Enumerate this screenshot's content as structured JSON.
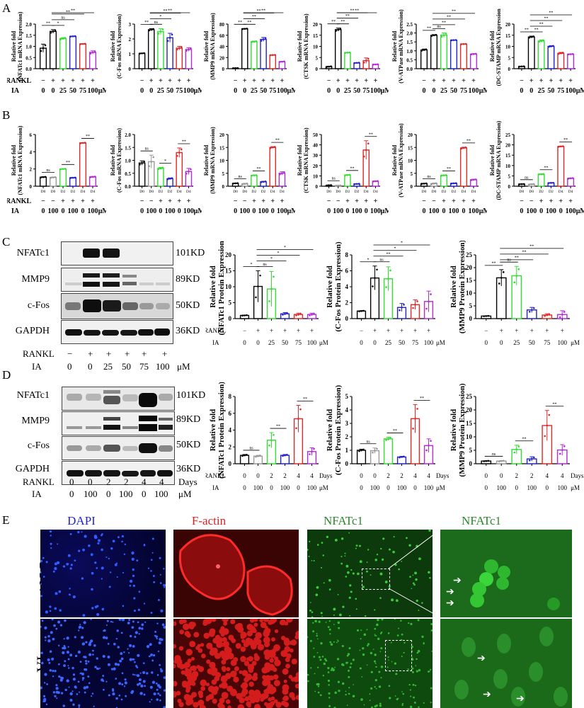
{
  "panels": {
    "A": "A",
    "B": "B",
    "C": "C",
    "D": "D",
    "E": "E"
  },
  "colors": {
    "black": "#000000",
    "gray": "#9a9a9a",
    "green": "#33dd33",
    "blue": "#2222cc",
    "red": "#e02828",
    "purple": "#b32ad8"
  },
  "conditions_dose": {
    "rankl_label": "RANKL",
    "ia_label": "IA",
    "rankl": [
      "−",
      "+",
      "+",
      "+",
      "+",
      "+"
    ],
    "ia": [
      "0",
      "0",
      "25",
      "50",
      "75",
      "100"
    ],
    "unit": "μM"
  },
  "conditions_time": {
    "rankl_label": "RANKL",
    "ia_label": "IA",
    "rankl": [
      "−",
      "−",
      "+",
      "+",
      "+",
      "+"
    ],
    "ia": [
      "0",
      "100",
      "0",
      "100",
      "0",
      "100"
    ],
    "unit": "μM",
    "days": [
      "D0",
      "D0",
      "D2",
      "D2",
      "D4",
      "D4"
    ]
  },
  "conditions_time_protein": {
    "rankl_label": "RANKL",
    "ia_label": "IA",
    "rankl": [
      "0",
      "0",
      "2",
      "2",
      "4",
      "4"
    ],
    "ia": [
      "0",
      "100",
      "0",
      "100",
      "0",
      "100"
    ],
    "rankl_unit": "Days",
    "ia_unit": "μM"
  },
  "blots": {
    "C": {
      "rows": [
        {
          "name": "NFATc1",
          "kd": "101KD"
        },
        {
          "name": "MMP9",
          "kd": "89KD"
        },
        {
          "name": "c-Fos",
          "kd": "50KD"
        },
        {
          "name": "GAPDH",
          "kd": "36KD"
        }
      ],
      "rankl": [
        "−",
        "+",
        "+",
        "+",
        "+",
        "+"
      ],
      "ia": [
        "0",
        "0",
        "25",
        "50",
        "75",
        "100"
      ],
      "unit": "μM",
      "rankl_label": "RANKL",
      "ia_label": "IA"
    },
    "D": {
      "rows": [
        {
          "name": "NFATc1",
          "kd": "101KD"
        },
        {
          "name": "MMP9",
          "kd": "89KD"
        },
        {
          "name": "c-Fos",
          "kd": "50KD"
        },
        {
          "name": "GAPDH",
          "kd": "36KD"
        }
      ],
      "rankl": [
        "0",
        "0",
        "2",
        "2",
        "4",
        "4"
      ],
      "ia": [
        "0",
        "100",
        "0",
        "100",
        "0",
        "100"
      ],
      "rankl_unit": "Days",
      "unit": "μM",
      "rankl_label": "RANKL",
      "ia_label": "IA"
    }
  },
  "microscopy": {
    "titles": [
      "DAPI",
      "F-actin",
      "NFATc1",
      "NFATc1"
    ],
    "rows": [
      "CON",
      "IA"
    ]
  },
  "chart_data": [
    {
      "id": "A1",
      "type": "bar",
      "ylabel": "Relative fold (NFATc1 mRNA Expression)",
      "ylim": [
        0,
        2.0
      ],
      "yticks": [
        "0.0",
        "0.5",
        "1.0",
        "1.5",
        "2.0"
      ],
      "categories": [
        "−/0",
        "+/0",
        "+/25",
        "+/50",
        "+/75",
        "+/100"
      ],
      "values": [
        0.92,
        1.67,
        1.35,
        1.45,
        1.11,
        0.73
      ],
      "errors": [
        0.18,
        0.08,
        0.04,
        0.01,
        0.01,
        0.07
      ],
      "sig": [
        {
          "from": 0,
          "to": 1,
          "label": "**"
        },
        {
          "from": 1,
          "to": 2,
          "label": "*"
        },
        {
          "from": 1,
          "to": 3,
          "label": "ns"
        },
        {
          "from": 1,
          "to": 4,
          "label": "**"
        },
        {
          "from": 1,
          "to": 5,
          "label": "**"
        }
      ]
    },
    {
      "id": "A2",
      "type": "bar",
      "ylabel": "Relative fold (C-Fos mRNA Expression)",
      "ylim": [
        0,
        3
      ],
      "yticks": [
        "0",
        "1",
        "2",
        "3"
      ],
      "categories": [
        "−/0",
        "+/0",
        "+/25",
        "+/50",
        "+/75",
        "+/100"
      ],
      "values": [
        1.03,
        2.62,
        2.5,
        2.08,
        1.38,
        1.29
      ],
      "errors": [
        0.02,
        0.07,
        0.2,
        0.3,
        0.12,
        0.12
      ],
      "sig": [
        {
          "from": 0,
          "to": 1,
          "label": "**"
        },
        {
          "from": 1,
          "to": 2,
          "label": "ns"
        },
        {
          "from": 1,
          "to": 3,
          "label": "*"
        },
        {
          "from": 1,
          "to": 4,
          "label": "**"
        },
        {
          "from": 1,
          "to": 5,
          "label": "**"
        }
      ]
    },
    {
      "id": "A3",
      "type": "bar",
      "ylabel": "Relative fold (MMP9 mRNA Expression)",
      "ylim": [
        0,
        80
      ],
      "yticks": [
        "0",
        "20",
        "40",
        "60",
        "80"
      ],
      "categories": [
        "−/0",
        "+/0",
        "+/25",
        "+/50",
        "+/75",
        "+/100"
      ],
      "values": [
        1,
        71.5,
        48.5,
        52.5,
        24.5,
        12.5
      ],
      "errors": [
        0.2,
        0.5,
        1,
        3.5,
        0.3,
        0.6
      ],
      "sig": [
        {
          "from": 0,
          "to": 1,
          "label": "**"
        },
        {
          "from": 1,
          "to": 2,
          "label": "**"
        },
        {
          "from": 1,
          "to": 3,
          "label": "**"
        },
        {
          "from": 1,
          "to": 4,
          "label": "**"
        },
        {
          "from": 1,
          "to": 5,
          "label": "**"
        }
      ]
    },
    {
      "id": "A4",
      "type": "bar",
      "ylabel": "Relative fold (CTSK mRNA Expression)",
      "ylim": [
        0,
        20
      ],
      "yticks": [
        "0",
        "5",
        "10",
        "15",
        "20"
      ],
      "categories": [
        "−/0",
        "+/0",
        "+/25",
        "+/50",
        "+/75",
        "+/100"
      ],
      "values": [
        0.9,
        17.5,
        7.2,
        2.6,
        3.6,
        1.9
      ],
      "errors": [
        0.2,
        0.7,
        0.1,
        0.1,
        1.2,
        0.1
      ],
      "sig": [
        {
          "from": 0,
          "to": 1,
          "label": "**"
        },
        {
          "from": 1,
          "to": 2,
          "label": "**"
        },
        {
          "from": 1,
          "to": 3,
          "label": "**"
        },
        {
          "from": 1,
          "to": 4,
          "label": "**"
        },
        {
          "from": 1,
          "to": 5,
          "label": "**"
        }
      ]
    },
    {
      "id": "A5",
      "type": "bar",
      "ylabel": "Relative fold (V-ATPase mRNA Expression)",
      "ylim": [
        0,
        2.5
      ],
      "yticks": [
        "0.0",
        "0.5",
        "1.0",
        "1.5",
        "2.0",
        "2.5"
      ],
      "categories": [
        "−/0",
        "+/0",
        "+/25",
        "+/50",
        "+/75",
        "+/100"
      ],
      "values": [
        1.05,
        1.87,
        1.88,
        1.6,
        1.38,
        0.82
      ],
      "errors": [
        0.05,
        0.04,
        0.12,
        0.01,
        0.01,
        0.02
      ],
      "sig": [
        {
          "from": 0,
          "to": 1,
          "label": "**"
        },
        {
          "from": 1,
          "to": 2,
          "label": "ns"
        },
        {
          "from": 1,
          "to": 3,
          "label": "**"
        },
        {
          "from": 1,
          "to": 4,
          "label": "**"
        },
        {
          "from": 1,
          "to": 5,
          "label": "**"
        }
      ]
    },
    {
      "id": "A6",
      "type": "bar",
      "ylabel": "Relative fold (DC-STAMP mRNA Expression)",
      "ylim": [
        0,
        20
      ],
      "yticks": [
        "0",
        "5",
        "10",
        "15",
        "20"
      ],
      "categories": [
        "−/0",
        "+/0",
        "+/25",
        "+/50",
        "+/75",
        "+/100"
      ],
      "values": [
        1,
        14.2,
        12.4,
        10,
        6.9,
        6.5
      ],
      "errors": [
        0.1,
        0.4,
        0.5,
        0.3,
        0.4,
        0.1
      ],
      "sig": [
        {
          "from": 0,
          "to": 1,
          "label": "**"
        },
        {
          "from": 1,
          "to": 2,
          "label": "**"
        },
        {
          "from": 1,
          "to": 3,
          "label": "**"
        },
        {
          "from": 1,
          "to": 4,
          "label": "**"
        },
        {
          "from": 1,
          "to": 5,
          "label": "**"
        }
      ]
    },
    {
      "id": "B1",
      "type": "bar",
      "ylabel": "Relative fold (NFATc1 mRNA Expression)",
      "ylim": [
        0,
        6
      ],
      "yticks": [
        "0",
        "2",
        "4",
        "6"
      ],
      "categories": [
        "D0",
        "D0",
        "D2",
        "D2",
        "D4",
        "D4"
      ],
      "values": [
        1.05,
        1.02,
        2.0,
        0.98,
        5.02,
        1.08
      ],
      "errors": [
        0.05,
        0.05,
        0.03,
        0.03,
        0.04,
        0.05
      ],
      "sig": [
        {
          "from": 0,
          "to": 1,
          "label": "ns"
        },
        {
          "from": 2,
          "to": 3,
          "label": "**"
        },
        {
          "from": 4,
          "to": 5,
          "label": "**"
        }
      ]
    },
    {
      "id": "B2",
      "type": "bar",
      "ylabel": "Relative fold (C-Fos mRNA Expression)",
      "ylim": [
        0,
        2.0
      ],
      "yticks": [
        "0.0",
        "0.5",
        "1.0",
        "1.5",
        "2.0"
      ],
      "categories": [
        "D0",
        "D0",
        "D2",
        "D2",
        "D4",
        "D4"
      ],
      "values": [
        0.9,
        0.95,
        0.69,
        0.29,
        1.3,
        0.57
      ],
      "errors": [
        0.08,
        0.25,
        0.04,
        0.03,
        0.18,
        0.12
      ],
      "sig": [
        {
          "from": 0,
          "to": 1,
          "label": "ns"
        },
        {
          "from": 2,
          "to": 3,
          "label": "*"
        },
        {
          "from": 4,
          "to": 5,
          "label": "**"
        }
      ]
    },
    {
      "id": "B3",
      "type": "bar",
      "ylabel": "Relative fold (MMP9 mRNA Expression)",
      "ylim": [
        0,
        20
      ],
      "yticks": [
        "0",
        "5",
        "10",
        "15",
        "20"
      ],
      "categories": [
        "D0",
        "D0",
        "D2",
        "D2",
        "D4",
        "D4"
      ],
      "values": [
        1.1,
        0.9,
        4.2,
        1.7,
        15.0,
        5.0
      ],
      "errors": [
        0.1,
        0.2,
        0.1,
        0.2,
        0.3,
        0.6
      ],
      "sig": [
        {
          "from": 0,
          "to": 1,
          "label": "ns"
        },
        {
          "from": 2,
          "to": 3,
          "label": "**"
        },
        {
          "from": 4,
          "to": 5,
          "label": "**"
        }
      ]
    },
    {
      "id": "B4",
      "type": "bar",
      "ylabel": "Relative fold (CTSK mRNA Expression)",
      "ylim": [
        0,
        50
      ],
      "yticks": [
        "0",
        "10",
        "20",
        "30",
        "40",
        "50"
      ],
      "categories": [
        "D0",
        "D0",
        "D2",
        "D2",
        "D4",
        "D4"
      ],
      "values": [
        0.9,
        0.6,
        10.8,
        2.2,
        35,
        4.8
      ],
      "errors": [
        0.3,
        0.2,
        0.3,
        0.2,
        9,
        0.3
      ],
      "sig": [
        {
          "from": 0,
          "to": 1,
          "label": "ns"
        },
        {
          "from": 2,
          "to": 3,
          "label": "**"
        },
        {
          "from": 4,
          "to": 5,
          "label": "**"
        }
      ]
    },
    {
      "id": "B5",
      "type": "bar",
      "ylabel": "Relative fold (V-ATPase mRNA Expression)",
      "ylim": [
        0,
        20
      ],
      "yticks": [
        "0",
        "5",
        "10",
        "15",
        "20"
      ],
      "categories": [
        "D0",
        "D0",
        "D2",
        "D2",
        "D4",
        "D4"
      ],
      "values": [
        1.0,
        1.0,
        4.2,
        1.1,
        14.8,
        2.5
      ],
      "errors": [
        0.1,
        0.2,
        0.1,
        0.1,
        0.3,
        0.2
      ],
      "sig": [
        {
          "from": 0,
          "to": 1,
          "label": "ns"
        },
        {
          "from": 2,
          "to": 3,
          "label": "**"
        },
        {
          "from": 4,
          "to": 5,
          "label": "**"
        }
      ]
    },
    {
      "id": "B6",
      "type": "bar",
      "ylabel": "Relative fold (DC-STAMP mRNA Expression)",
      "ylim": [
        0,
        25
      ],
      "yticks": [
        "0",
        "5",
        "10",
        "15",
        "20",
        "25"
      ],
      "categories": [
        "D0",
        "D0",
        "D2",
        "D2",
        "D4",
        "D4"
      ],
      "values": [
        1.0,
        0.9,
        5.8,
        1.6,
        19.2,
        3.8
      ],
      "errors": [
        0.1,
        0.2,
        0.1,
        0.1,
        0.2,
        0.2
      ],
      "sig": [
        {
          "from": 0,
          "to": 1,
          "label": "ns"
        },
        {
          "from": 2,
          "to": 3,
          "label": "**"
        },
        {
          "from": 4,
          "to": 5,
          "label": "**"
        }
      ]
    },
    {
      "id": "C1",
      "type": "bar",
      "ylabel": "Relative fold (NFATc1 Protein Expression)",
      "ylim": [
        0,
        20
      ],
      "yticks": [
        "0",
        "5",
        "10",
        "15",
        "20"
      ],
      "categories": [
        "−/0",
        "+/0",
        "+/25",
        "+/50",
        "+/75",
        "+/100"
      ],
      "values": [
        1.0,
        10.1,
        9.3,
        1.5,
        1.3,
        1.3
      ],
      "errors": [
        0.1,
        4.9,
        5.5,
        0.4,
        0.4,
        0.4
      ],
      "sig": [
        {
          "from": 0,
          "to": 1,
          "label": "*"
        },
        {
          "from": 1,
          "to": 2,
          "label": "ns"
        },
        {
          "from": 1,
          "to": 3,
          "label": "*"
        },
        {
          "from": 1,
          "to": 4,
          "label": "*"
        },
        {
          "from": 1,
          "to": 5,
          "label": "*"
        }
      ]
    },
    {
      "id": "C2",
      "type": "bar",
      "ylabel": "Relative fold (C-Fos Protein Expression)",
      "ylim": [
        0,
        8
      ],
      "yticks": [
        "0",
        "2",
        "4",
        "6",
        "8"
      ],
      "categories": [
        "−/0",
        "+/0",
        "+/25",
        "+/50",
        "+/75",
        "+/100"
      ],
      "values": [
        0.95,
        5.1,
        5.0,
        1.4,
        1.75,
        2.15
      ],
      "errors": [
        0.05,
        1.5,
        1.5,
        0.5,
        0.6,
        1.3
      ],
      "sig": [
        {
          "from": 0,
          "to": 1,
          "label": "*"
        },
        {
          "from": 1,
          "to": 2,
          "label": "ns"
        },
        {
          "from": 1,
          "to": 3,
          "label": "**"
        },
        {
          "from": 1,
          "to": 4,
          "label": "*"
        },
        {
          "from": 1,
          "to": 5,
          "label": "*"
        }
      ]
    },
    {
      "id": "C3",
      "type": "bar",
      "ylabel": "Relative fold (MMP9 Protein Expression)",
      "ylim": [
        0,
        25
      ],
      "yticks": [
        "0",
        "5",
        "10",
        "15",
        "20",
        "25"
      ],
      "categories": [
        "−/0",
        "+/0",
        "+/25",
        "+/50",
        "+/75",
        "+/100"
      ],
      "values": [
        1.0,
        16.0,
        16.8,
        3.4,
        1.4,
        1.6
      ],
      "errors": [
        0.1,
        3.2,
        3.7,
        1.0,
        0.5,
        1.5
      ],
      "sig": [
        {
          "from": 0,
          "to": 1,
          "label": "**"
        },
        {
          "from": 1,
          "to": 2,
          "label": "ns"
        },
        {
          "from": 1,
          "to": 3,
          "label": "**"
        },
        {
          "from": 1,
          "to": 4,
          "label": "**"
        },
        {
          "from": 1,
          "to": 5,
          "label": "**"
        }
      ]
    },
    {
      "id": "D1",
      "type": "bar",
      "ylabel": "Relative fold (NFATc1 Protein Expression)",
      "ylim": [
        0,
        8
      ],
      "yticks": [
        "0",
        "2",
        "4",
        "6",
        "8"
      ],
      "categories": [
        "0/0",
        "0/100",
        "2/0",
        "2/100",
        "4/0",
        "4/100"
      ],
      "values": [
        1.0,
        0.9,
        2.8,
        1.0,
        5.35,
        1.45
      ],
      "errors": [
        0.1,
        0.1,
        0.9,
        0.1,
        1.6,
        0.45
      ],
      "sig": [
        {
          "from": 0,
          "to": 1,
          "label": "ns"
        },
        {
          "from": 2,
          "to": 3,
          "label": "**"
        },
        {
          "from": 4,
          "to": 5,
          "label": "**"
        }
      ]
    },
    {
      "id": "D2",
      "type": "bar",
      "ylabel": "Relative fold (C-Fos Protein Expression)",
      "ylim": [
        0,
        5
      ],
      "yticks": [
        "0",
        "1",
        "2",
        "3",
        "4",
        "5"
      ],
      "categories": [
        "0/0",
        "0/100",
        "2/0",
        "2/100",
        "4/0",
        "4/100"
      ],
      "values": [
        1.0,
        0.97,
        1.85,
        0.5,
        3.35,
        1.35
      ],
      "errors": [
        0.08,
        0.2,
        0.12,
        0.05,
        1.05,
        0.5
      ],
      "sig": [
        {
          "from": 0,
          "to": 1,
          "label": "ns"
        },
        {
          "from": 2,
          "to": 3,
          "label": "**"
        },
        {
          "from": 4,
          "to": 5,
          "label": "**"
        }
      ]
    },
    {
      "id": "D3",
      "type": "bar",
      "ylabel": "Relative fold (MMP9 Protein Expression)",
      "ylim": [
        0,
        25
      ],
      "yticks": [
        "0",
        "5",
        "10",
        "15",
        "20",
        "25"
      ],
      "categories": [
        "0/0",
        "0/100",
        "2/0",
        "2/100",
        "4/0",
        "4/100"
      ],
      "values": [
        1.0,
        1.0,
        5.3,
        1.8,
        14.2,
        5.1
      ],
      "errors": [
        0.1,
        0.2,
        1.6,
        0.8,
        5.6,
        2.0
      ],
      "sig": [
        {
          "from": 0,
          "to": 1,
          "label": "ns"
        },
        {
          "from": 2,
          "to": 3,
          "label": "**"
        },
        {
          "from": 4,
          "to": 5,
          "label": "**"
        }
      ]
    }
  ]
}
